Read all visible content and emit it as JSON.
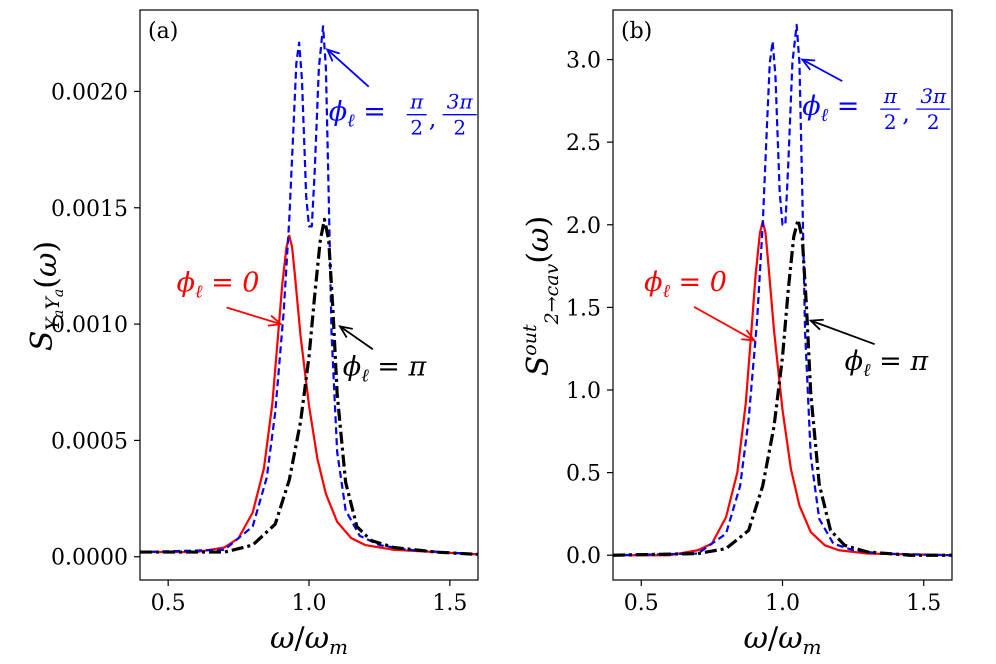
{
  "chart_data": [
    {
      "type": "line",
      "panel_label": "(a)",
      "xlabel": "ω/ω_m",
      "ylabel": "S_{Y_aY_a}(ω)",
      "xlim": [
        0.4,
        1.6
      ],
      "ylim": [
        -0.0001,
        0.00235
      ],
      "xticks": [
        0.5,
        1.0,
        1.5
      ],
      "xtick_labels": [
        "0.5",
        "1.0",
        "1.5"
      ],
      "yticks": [
        0.0,
        0.0005,
        0.001,
        0.0015,
        0.002
      ],
      "ytick_labels": [
        "0.0000",
        "0.0005",
        "0.0010",
        "0.0015",
        "0.0020"
      ],
      "grid": false,
      "series": [
        {
          "style": "solid",
          "color": "#ff0000",
          "x": [
            0.4,
            0.6,
            0.7,
            0.75,
            0.8,
            0.84,
            0.87,
            0.89,
            0.905,
            0.92,
            0.93,
            0.94,
            0.95,
            0.97,
            1.0,
            1.03,
            1.06,
            1.1,
            1.15,
            1.2,
            1.3,
            1.6
          ],
          "y": [
            2e-05,
            2e-05,
            4e-05,
            8e-05,
            0.00019,
            0.00038,
            0.00066,
            0.00095,
            0.00117,
            0.00133,
            0.00138,
            0.00133,
            0.00121,
            0.00095,
            0.00065,
            0.00042,
            0.00027,
            0.00015,
            8e-05,
            5e-05,
            3e-05,
            1e-05
          ]
        },
        {
          "style": "dashed",
          "color": "#0000ff",
          "x": [
            0.4,
            0.7,
            0.8,
            0.85,
            0.88,
            0.91,
            0.93,
            0.945,
            0.955,
            0.965,
            0.975,
            0.99,
            1.0,
            1.01,
            1.02,
            1.035,
            1.05,
            1.06,
            1.07,
            1.08,
            1.1,
            1.13,
            1.18,
            1.25,
            1.35,
            1.6
          ],
          "y": [
            2e-05,
            3e-05,
            0.00013,
            0.00034,
            0.00062,
            0.00105,
            0.00145,
            0.00185,
            0.00212,
            0.00221,
            0.00205,
            0.00155,
            0.00142,
            0.00142,
            0.00165,
            0.0021,
            0.00228,
            0.0021,
            0.00155,
            0.00096,
            0.00045,
            0.0002,
            9e-05,
            5e-05,
            3e-05,
            1e-05
          ]
        },
        {
          "style": "dashdot",
          "color": "#000000",
          "x": [
            0.4,
            0.7,
            0.8,
            0.88,
            0.93,
            0.97,
            1.0,
            1.02,
            1.04,
            1.055,
            1.07,
            1.085,
            1.1,
            1.13,
            1.17,
            1.22,
            1.3,
            1.45,
            1.6
          ],
          "y": [
            2e-05,
            2e-05,
            5e-05,
            0.00014,
            0.00033,
            0.00058,
            0.00086,
            0.00112,
            0.00136,
            0.00145,
            0.00136,
            0.00106,
            0.0007,
            0.00032,
            0.00013,
            7e-05,
            4e-05,
            2e-05,
            1e-05
          ]
        }
      ],
      "annotations": [
        {
          "text": "(a)",
          "kind": "panel"
        },
        {
          "text": "ϕℓ = π/2, 3π/2",
          "color": "#0000ff",
          "arrow_to": [
            1.065,
            0.00218
          ],
          "text_at": [
            1.07,
            0.0019
          ]
        },
        {
          "text": "ϕℓ = 0",
          "color": "#ff0000",
          "arrow_to": [
            0.9,
            0.001
          ],
          "text_at": [
            0.53,
            0.00114
          ]
        },
        {
          "text": "ϕℓ = π",
          "color": "#000000",
          "arrow_to": [
            1.11,
            0.00099
          ],
          "text_at": [
            1.12,
            0.00078
          ]
        }
      ]
    },
    {
      "type": "line",
      "panel_label": "(b)",
      "xlabel": "ω/ω_m",
      "ylabel": "S^{out}_{2→cav}(ω)",
      "xlim": [
        0.4,
        1.6
      ],
      "ylim": [
        -0.15,
        3.3
      ],
      "xticks": [
        0.5,
        1.0,
        1.5
      ],
      "xtick_labels": [
        "0.5",
        "1.0",
        "1.5"
      ],
      "yticks": [
        0.0,
        0.5,
        1.0,
        1.5,
        2.0,
        2.5,
        3.0
      ],
      "ytick_labels": [
        "0.0",
        "0.5",
        "1.0",
        "1.5",
        "2.0",
        "2.5",
        "3.0"
      ],
      "grid": false,
      "series": [
        {
          "style": "solid",
          "color": "#ff0000",
          "x": [
            0.4,
            0.6,
            0.7,
            0.75,
            0.8,
            0.84,
            0.87,
            0.89,
            0.905,
            0.92,
            0.93,
            0.94,
            0.95,
            0.97,
            1.0,
            1.03,
            1.06,
            1.1,
            1.15,
            1.2,
            1.3,
            1.6
          ],
          "y": [
            0.0,
            0.0,
            0.03,
            0.07,
            0.23,
            0.5,
            0.92,
            1.36,
            1.7,
            1.95,
            2.02,
            1.95,
            1.76,
            1.36,
            0.88,
            0.52,
            0.3,
            0.14,
            0.06,
            0.03,
            0.01,
            0.0
          ]
        },
        {
          "style": "dashed",
          "color": "#0000ff",
          "x": [
            0.4,
            0.7,
            0.8,
            0.85,
            0.88,
            0.91,
            0.93,
            0.945,
            0.955,
            0.965,
            0.975,
            0.99,
            1.0,
            1.01,
            1.02,
            1.035,
            1.05,
            1.06,
            1.07,
            1.08,
            1.1,
            1.13,
            1.18,
            1.25,
            1.35,
            1.6
          ],
          "y": [
            0.0,
            0.01,
            0.13,
            0.42,
            0.82,
            1.42,
            2.0,
            2.6,
            2.98,
            3.11,
            2.9,
            2.2,
            2.0,
            2.0,
            2.35,
            2.98,
            3.21,
            2.98,
            2.2,
            1.35,
            0.6,
            0.22,
            0.07,
            0.03,
            0.01,
            0.0
          ]
        },
        {
          "style": "dashdot",
          "color": "#000000",
          "x": [
            0.4,
            0.7,
            0.8,
            0.88,
            0.93,
            0.97,
            1.0,
            1.02,
            1.04,
            1.055,
            1.07,
            1.085,
            1.1,
            1.13,
            1.17,
            1.22,
            1.3,
            1.45,
            1.6
          ],
          "y": [
            0.0,
            0.01,
            0.04,
            0.15,
            0.42,
            0.78,
            1.2,
            1.6,
            1.93,
            2.03,
            1.92,
            1.5,
            0.98,
            0.43,
            0.15,
            0.06,
            0.02,
            0.0,
            0.0
          ]
        }
      ],
      "annotations": [
        {
          "text": "(b)",
          "kind": "panel"
        },
        {
          "text": "ϕℓ = π/2, 3π/2",
          "color": "#0000ff",
          "arrow_to": [
            1.07,
            3.0
          ],
          "text_at": [
            1.07,
            2.7
          ]
        },
        {
          "text": "ϕℓ = 0",
          "color": "#ff0000",
          "arrow_to": [
            0.9,
            1.3
          ],
          "text_at": [
            0.51,
            1.6
          ]
        },
        {
          "text": "ϕℓ = π",
          "color": "#000000",
          "arrow_to": [
            1.1,
            1.42
          ],
          "text_at": [
            1.22,
            1.12
          ]
        }
      ]
    }
  ]
}
